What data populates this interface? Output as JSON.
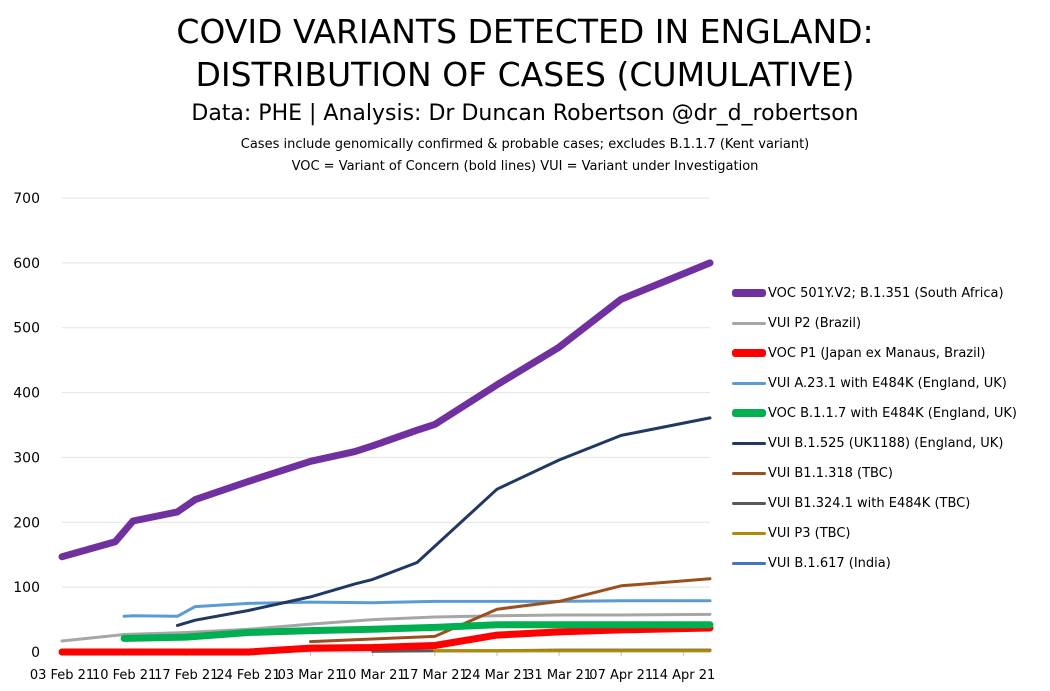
{
  "title_line1": "COVID VARIANTS DETECTED IN ENGLAND:",
  "title_line2": "DISTRIBUTION OF CASES (CUMULATIVE)",
  "subtitle": "Data: PHE | Analysis: Dr Duncan Robertson @dr_d_robertson",
  "note_line1": "Cases include genomically confirmed & probable cases; excludes B.1.1.7 (Kent variant)",
  "note_line2": "VOC = Variant of Concern (bold lines) VUI = Variant under Investigation",
  "chart_data": {
    "type": "line",
    "title": "COVID VARIANTS DETECTED IN ENGLAND: DISTRIBUTION OF CASES (CUMULATIVE)",
    "xlabel": "",
    "ylabel": "",
    "xlim": [
      "2021-02-03",
      "2021-04-17"
    ],
    "ylim": [
      0,
      700
    ],
    "x_ticks": [
      "03 Feb 21",
      "10 Feb 21",
      "17 Feb 21",
      "24 Feb 21",
      "03 Mar 21",
      "10 Mar 21",
      "17 Mar 21",
      "24 Mar 21",
      "31 Mar 21",
      "07 Apr 21",
      "14 Apr 21"
    ],
    "x_tick_dates": [
      "2021-02-03",
      "2021-02-10",
      "2021-02-17",
      "2021-02-24",
      "2021-03-03",
      "2021-03-10",
      "2021-03-17",
      "2021-03-24",
      "2021-03-31",
      "2021-04-07",
      "2021-04-14"
    ],
    "y_ticks": [
      0,
      100,
      200,
      300,
      400,
      500,
      600,
      700
    ],
    "grid": "horizontal",
    "legend_position": "right",
    "series": [
      {
        "name": "VOC 501Y.V2; B.1.351 (South Africa)",
        "color": "#7030a0",
        "bold": true,
        "points": [
          [
            "2021-02-03",
            147
          ],
          [
            "2021-02-09",
            170
          ],
          [
            "2021-02-11",
            202
          ],
          [
            "2021-02-16",
            216
          ],
          [
            "2021-02-18",
            235
          ],
          [
            "2021-02-24",
            263
          ],
          [
            "2021-03-03",
            294
          ],
          [
            "2021-03-08",
            309
          ],
          [
            "2021-03-10",
            318
          ],
          [
            "2021-03-15",
            342
          ],
          [
            "2021-03-17",
            351
          ],
          [
            "2021-03-24",
            412
          ],
          [
            "2021-03-31",
            470
          ],
          [
            "2021-04-07",
            544
          ],
          [
            "2021-04-17",
            600
          ]
        ]
      },
      {
        "name": "VUI P2 (Brazil)",
        "color": "#a6a6a6",
        "bold": false,
        "points": [
          [
            "2021-02-03",
            17
          ],
          [
            "2021-02-10",
            27
          ],
          [
            "2021-02-17",
            30
          ],
          [
            "2021-02-24",
            35
          ],
          [
            "2021-03-03",
            43
          ],
          [
            "2021-03-10",
            50
          ],
          [
            "2021-03-17",
            54
          ],
          [
            "2021-03-24",
            56
          ],
          [
            "2021-03-31",
            57
          ],
          [
            "2021-04-07",
            57
          ],
          [
            "2021-04-17",
            58
          ]
        ]
      },
      {
        "name": "VOC P1 (Japan ex Manaus, Brazil)",
        "color": "#ff0000",
        "bold": true,
        "points": [
          [
            "2021-02-03",
            0
          ],
          [
            "2021-02-24",
            0
          ],
          [
            "2021-03-03",
            6
          ],
          [
            "2021-03-10",
            7
          ],
          [
            "2021-03-17",
            10
          ],
          [
            "2021-03-24",
            26
          ],
          [
            "2021-03-31",
            31
          ],
          [
            "2021-04-07",
            34
          ],
          [
            "2021-04-17",
            37
          ]
        ]
      },
      {
        "name": "VUI A.23.1 with E484K (England, UK)",
        "color": "#5b9bd5",
        "bold": false,
        "points": [
          [
            "2021-02-10",
            55
          ],
          [
            "2021-02-11",
            56
          ],
          [
            "2021-02-16",
            55
          ],
          [
            "2021-02-18",
            70
          ],
          [
            "2021-02-24",
            75
          ],
          [
            "2021-03-03",
            77
          ],
          [
            "2021-03-10",
            76
          ],
          [
            "2021-03-17",
            78
          ],
          [
            "2021-03-24",
            78
          ],
          [
            "2021-03-31",
            78
          ],
          [
            "2021-04-07",
            79
          ],
          [
            "2021-04-17",
            79
          ]
        ]
      },
      {
        "name": "VOC B.1.1.7 with E484K (England, UK)",
        "color": "#00b050",
        "bold": true,
        "points": [
          [
            "2021-02-10",
            21
          ],
          [
            "2021-02-17",
            23
          ],
          [
            "2021-02-24",
            30
          ],
          [
            "2021-03-03",
            33
          ],
          [
            "2021-03-10",
            35
          ],
          [
            "2021-03-17",
            38
          ],
          [
            "2021-03-24",
            42
          ],
          [
            "2021-03-31",
            42
          ],
          [
            "2021-04-07",
            42
          ],
          [
            "2021-04-17",
            42
          ]
        ]
      },
      {
        "name": "VUI B.1.525 (UK1188) (England, UK)",
        "color": "#203864",
        "bold": false,
        "points": [
          [
            "2021-02-16",
            41
          ],
          [
            "2021-02-18",
            49
          ],
          [
            "2021-02-24",
            64
          ],
          [
            "2021-03-03",
            85
          ],
          [
            "2021-03-08",
            105
          ],
          [
            "2021-03-10",
            112
          ],
          [
            "2021-03-15",
            138
          ],
          [
            "2021-03-24",
            251
          ],
          [
            "2021-03-31",
            296
          ],
          [
            "2021-04-07",
            334
          ],
          [
            "2021-04-17",
            361
          ]
        ]
      },
      {
        "name": "VUI B1.1.318 (TBC)",
        "color": "#9c4f1e",
        "bold": false,
        "points": [
          [
            "2021-03-03",
            16
          ],
          [
            "2021-03-10",
            20
          ],
          [
            "2021-03-17",
            24
          ],
          [
            "2021-03-24",
            66
          ],
          [
            "2021-03-31",
            78
          ],
          [
            "2021-04-07",
            102
          ],
          [
            "2021-04-17",
            113
          ]
        ]
      },
      {
        "name": "VUI B1.324.1 with E484K (TBC)",
        "color": "#595959",
        "bold": false,
        "points": [
          [
            "2021-03-10",
            1
          ],
          [
            "2021-03-17",
            2
          ],
          [
            "2021-03-24",
            2
          ],
          [
            "2021-03-31",
            3
          ],
          [
            "2021-04-07",
            3
          ],
          [
            "2021-04-17",
            3
          ]
        ]
      },
      {
        "name": "VUI P3 (TBC)",
        "color": "#b08a00",
        "bold": false,
        "points": [
          [
            "2021-03-17",
            2
          ],
          [
            "2021-03-24",
            2
          ],
          [
            "2021-03-31",
            2
          ],
          [
            "2021-04-07",
            2
          ],
          [
            "2021-04-17",
            2
          ]
        ]
      },
      {
        "name": "VUI B.1.617 (India)",
        "color": "#4472c4",
        "bold": false,
        "points": []
      }
    ]
  }
}
